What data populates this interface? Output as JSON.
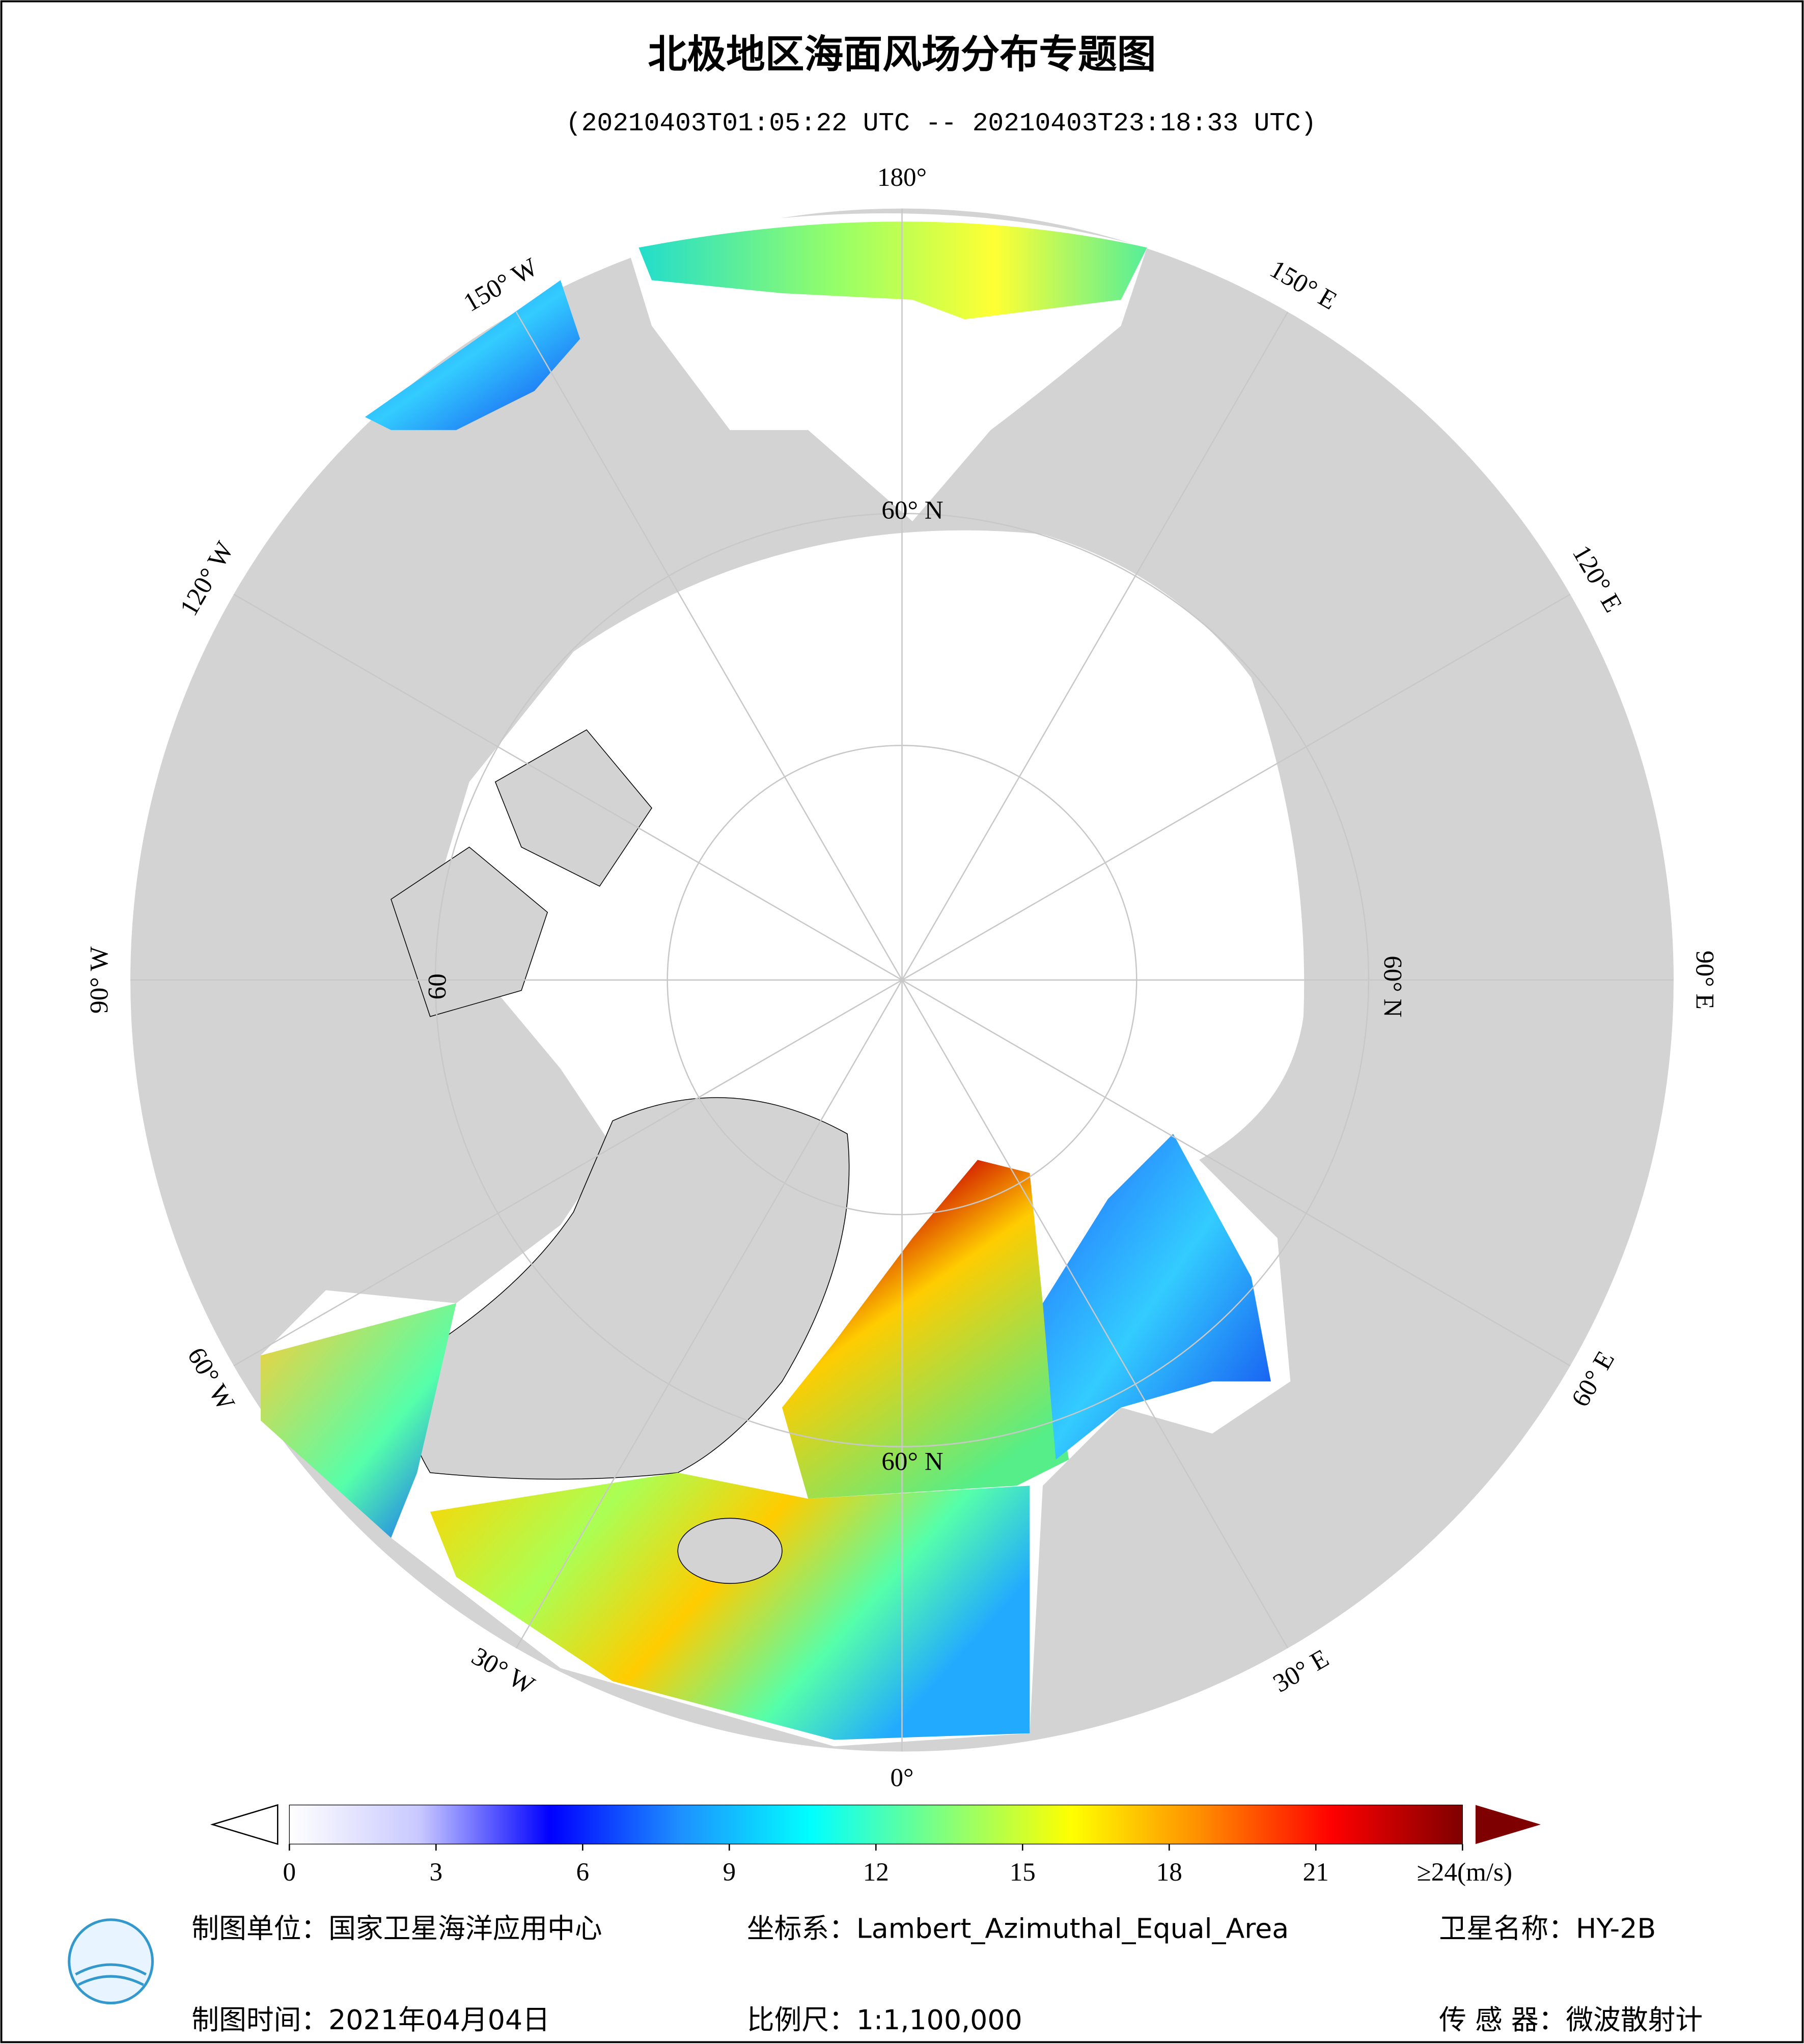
{
  "header": {
    "title": "北极地区海面风场分布专题图",
    "subtitle": "(20210403T01:05:22 UTC -- 20210403T23:18:33 UTC)"
  },
  "map": {
    "lon_labels": [
      "180°",
      "150° E",
      "120° E",
      "90° E",
      "60° E",
      "30° E",
      "0°",
      "30° W",
      "60° W",
      "90° W",
      "120° W",
      "150° W"
    ],
    "lat_label": "60° N",
    "lat_label_short": "60"
  },
  "colorbar": {
    "range": [
      0,
      24
    ],
    "ticks": [
      0,
      3,
      6,
      9,
      12,
      15,
      18,
      21,
      {
        "value": 24,
        "label": "≥24(m/s)"
      }
    ],
    "colors": [
      "#ffffff",
      "#c8c8ff",
      "#0000ff",
      "#1e90ff",
      "#00ffff",
      "#7fff7f",
      "#ffff00",
      "#ff8c00",
      "#ff0000",
      "#7f0000"
    ]
  },
  "footer": {
    "unit": "制图单位：国家卫星海洋应用中心",
    "crs": "坐标系：Lambert_Azimuthal_Equal_Area",
    "satellite": "卫星名称：HY-2B",
    "date": "制图时间：2021年04月04日",
    "scale": "比例尺：1:1,100,000",
    "sensor": "传 感 器：微波散射计"
  }
}
